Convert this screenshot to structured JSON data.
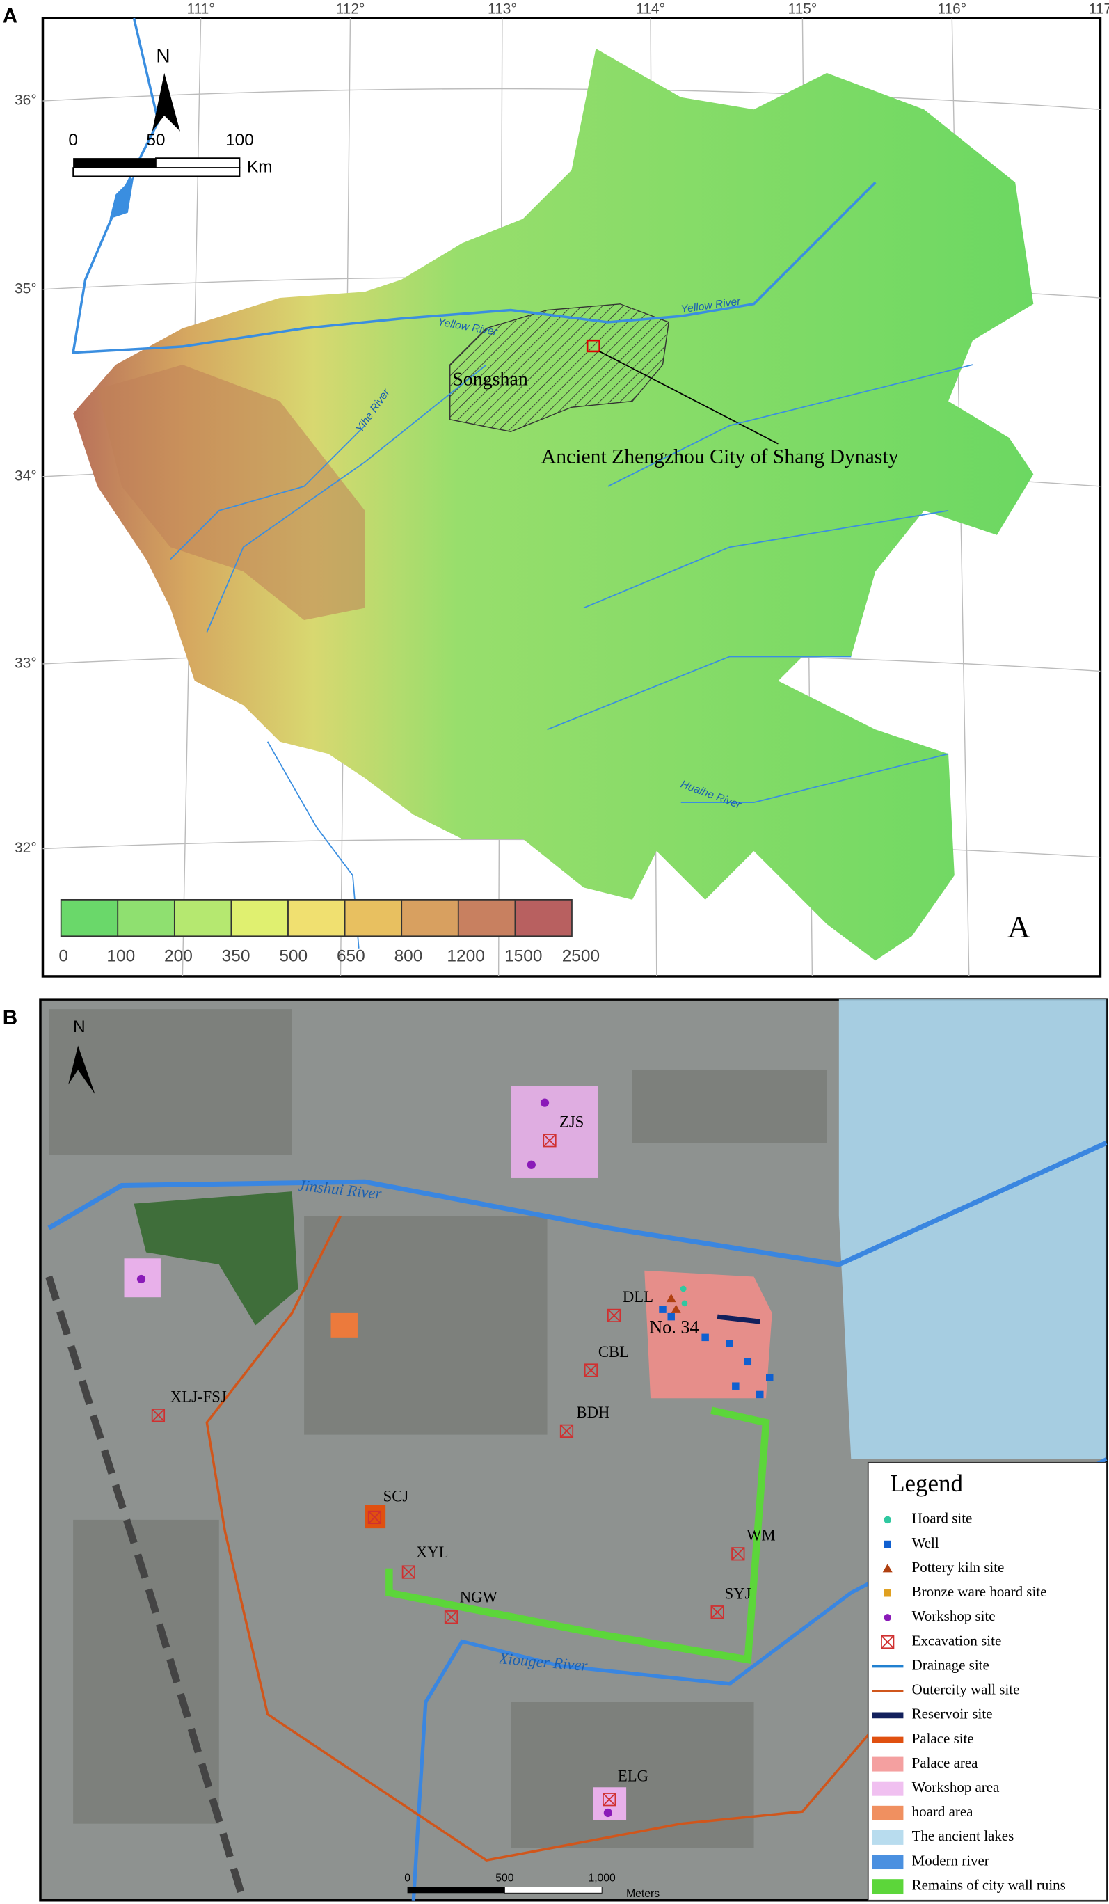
{
  "panel_a": {
    "panel_label": "A",
    "lon_labels": [
      "111°",
      "112°",
      "113°",
      "114°",
      "115°",
      "116°",
      "117"
    ],
    "lat_labels": [
      "36°",
      "35°",
      "34°",
      "33°",
      "32°"
    ],
    "north": "N",
    "scale_labels": [
      "0",
      "50",
      "100"
    ],
    "scale_unit": "Km",
    "rivers": [
      "Yellow River",
      "Yellow River",
      "Yihe River",
      "Huaihe River"
    ],
    "mountain": "Songshan",
    "site": "Ancient Zhengzhou City of Shang Dynasty",
    "elevation_legend": [
      "0",
      "100",
      "200",
      "350",
      "500",
      "650",
      "800",
      "1200",
      "1500",
      "2500"
    ],
    "corner_label": "A"
  },
  "panel_b": {
    "panel_label": "B",
    "north": "N",
    "rivers": [
      "Jinshui River",
      "Xiouger River"
    ],
    "sites": [
      "ZJS",
      "DLL",
      "No. 34",
      "CBL",
      "XLJ-FSJ",
      "BDH",
      "SCJ",
      "XYL",
      "NGW",
      "WM",
      "SYJ",
      "ELG"
    ],
    "scale_labels": [
      "0",
      "500",
      "1,000"
    ],
    "scale_unit": "Meters",
    "legend": {
      "title": "Legend",
      "items": [
        "Hoard site",
        "Well",
        "Pottery kiln site",
        "Bronze ware hoard site",
        "Workshop site",
        "Excavation site",
        "Drainage site",
        "Outercity wall site",
        "Reservoir site",
        "Palace site",
        "Palace area",
        "Workshop area",
        "hoard area",
        "The ancient lakes",
        "Modern river",
        "Remains of city wall ruins"
      ]
    }
  }
}
